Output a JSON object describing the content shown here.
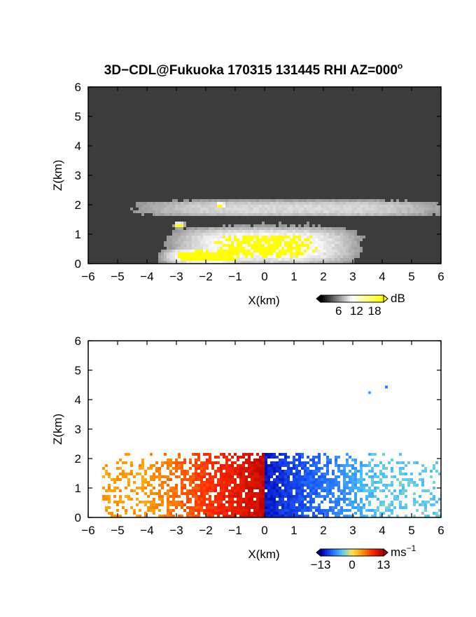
{
  "figure": {
    "title_main": "3D−CDL@Fukuoka 170315 131445 RHI AZ=000",
    "title_suffix": "o"
  },
  "chart_data": [
    {
      "type": "heatmap",
      "quantity": "signal intensity",
      "xlabel": "X(km)",
      "ylabel": "Z(km)",
      "xlim": [
        -6,
        6
      ],
      "ylim": [
        0,
        6
      ],
      "xticks": [
        "−6",
        "−5",
        "−4",
        "−3",
        "−2",
        "−1",
        "0",
        "1",
        "2",
        "3",
        "4",
        "5",
        "6"
      ],
      "yticks": [
        "0",
        "1",
        "2",
        "3",
        "4",
        "5",
        "6"
      ],
      "background": "dark grey noise",
      "colorbar": {
        "unit": "dB",
        "tick_labels": [
          "6",
          "12",
          "18"
        ],
        "range": [
          0,
          21
        ],
        "colors": [
          "#000000",
          "#ffffff",
          "#ffff00"
        ]
      },
      "features": [
        {
          "description": "bright layer",
          "x_range": [
            -4.2,
            6.0
          ],
          "z_range": [
            1.6,
            2.15
          ],
          "intensity_db": 14
        },
        {
          "description": "bright fan near radar",
          "x_range": [
            -3.0,
            3.0
          ],
          "z_range": [
            0.0,
            1.2
          ],
          "intensity_db": 18
        },
        {
          "description": "saturated patch",
          "x": -2.9,
          "z": 1.3,
          "intensity_db": 21
        },
        {
          "description": "saturated patch",
          "x": -1.5,
          "z": 1.98,
          "intensity_db": 21
        },
        {
          "description": "saturated ground echo",
          "x_range": [
            -3.4,
            -0.6
          ],
          "z_range": [
            0.0,
            0.5
          ],
          "intensity_db": 21
        }
      ]
    },
    {
      "type": "heatmap",
      "quantity": "radial velocity",
      "xlabel": "X(km)",
      "ylabel": "Z(km)",
      "xlim": [
        -6,
        6
      ],
      "ylim": [
        0,
        6
      ],
      "xticks": [
        "−6",
        "−5",
        "−4",
        "−3",
        "−2",
        "−1",
        "0",
        "1",
        "2",
        "3",
        "4",
        "5",
        "6"
      ],
      "yticks": [
        "0",
        "1",
        "2",
        "3",
        "4",
        "5",
        "6"
      ],
      "colorbar": {
        "unit": "ms",
        "unit_exponent": "−1",
        "tick_labels": [
          "−13",
          "0",
          "13"
        ],
        "range": [
          -13,
          13
        ],
        "colors": [
          "#0000b4",
          "#1e64ff",
          "#50c8ff",
          "#ffe650",
          "#ff9600",
          "#ff2800",
          "#b40000"
        ]
      },
      "features": [
        {
          "description": "negative side",
          "x_range": [
            -5.5,
            0.0
          ],
          "z_range": [
            0.0,
            2.2
          ],
          "velocity_ms": [
            4,
            12
          ]
        },
        {
          "description": "positive side",
          "x_range": [
            0.0,
            6.0
          ],
          "z_range": [
            0.0,
            2.2
          ],
          "velocity_ms": [
            -12,
            -4
          ]
        },
        {
          "description": "isolated echo",
          "x": 3.6,
          "z": 4.2,
          "velocity_ms": -6
        },
        {
          "description": "isolated echo",
          "x": 4.1,
          "z": 4.4,
          "velocity_ms": -7
        }
      ]
    }
  ]
}
